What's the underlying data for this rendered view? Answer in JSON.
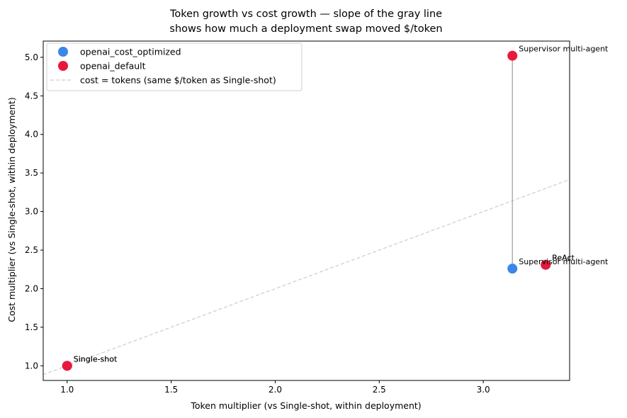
{
  "chart_data": {
    "type": "scatter",
    "title_lines": [
      "Token growth vs cost growth — slope of the gray line",
      "shows how much a deployment swap moved $/token"
    ],
    "xlabel": "Token multiplier (vs Single-shot, within deployment)",
    "ylabel": "Cost multiplier (vs Single-shot, within deployment)",
    "xlim": [
      0.885,
      3.415
    ],
    "ylim": [
      0.81,
      5.21
    ],
    "xticks": [
      1.0,
      1.5,
      2.0,
      2.5,
      3.0
    ],
    "yticks": [
      1.0,
      1.5,
      2.0,
      2.5,
      3.0,
      3.5,
      4.0,
      4.5,
      5.0
    ],
    "xtick_labels": [
      "1.0",
      "1.5",
      "2.0",
      "2.5",
      "3.0"
    ],
    "ytick_labels": [
      "1.0",
      "1.5",
      "2.0",
      "2.5",
      "3.0",
      "3.5",
      "4.0",
      "4.5",
      "5.0"
    ],
    "grid": false,
    "legend_position": "top-left",
    "series": [
      {
        "name": "openai_cost_optimized",
        "color": "#3b86e8",
        "points": [
          {
            "x": 1.0,
            "y": 1.0,
            "label": "Single-shot"
          },
          {
            "x": 3.14,
            "y": 2.26,
            "label": "Supervisor multi-agent"
          },
          {
            "x": 3.3,
            "y": 2.31,
            "label": "ReAct"
          }
        ]
      },
      {
        "name": "openai_default",
        "color": "#e8193c",
        "points": [
          {
            "x": 1.0,
            "y": 1.0,
            "label": "Single-shot"
          },
          {
            "x": 3.14,
            "y": 5.02,
            "label": "Supervisor multi-agent"
          },
          {
            "x": 3.3,
            "y": 2.31,
            "label": "ReAct"
          }
        ]
      }
    ],
    "reference_line": {
      "name": "cost = tokens (same $/token as Single-shot)",
      "color": "#cccccc",
      "style": "dashed"
    },
    "connector_lines": [
      {
        "x": 3.14,
        "y_from": 2.26,
        "y_to": 5.02,
        "color": "#aaaaaa"
      }
    ]
  }
}
